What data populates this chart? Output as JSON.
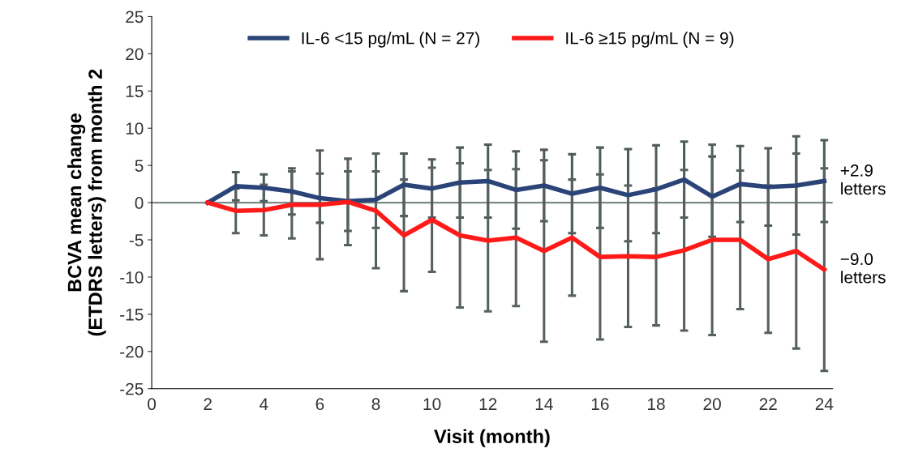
{
  "chart_data": {
    "type": "line",
    "xlabel": "Visit (month)",
    "ylabel": "BCVA mean change\n(ETDRS letters) from month 2",
    "x": [
      2,
      3,
      4,
      5,
      6,
      7,
      8,
      9,
      10,
      11,
      12,
      13,
      14,
      15,
      16,
      17,
      18,
      19,
      20,
      21,
      22,
      23,
      24
    ],
    "series": [
      {
        "name": "IL-6 <15 pg/mL (N = 27)",
        "color": "#2b4478",
        "values": [
          0,
          2.2,
          2.0,
          1.5,
          0.6,
          0.2,
          0.4,
          2.4,
          1.9,
          2.7,
          2.9,
          1.7,
          2.3,
          1.2,
          2.0,
          1.0,
          1.8,
          3.1,
          0.8,
          2.5,
          2.1,
          2.3,
          2.9
        ],
        "errors": [
          null,
          1.9,
          1.8,
          3.1,
          3.3,
          4.0,
          3.8,
          4.2,
          3.9,
          4.7,
          4.9,
          5.2,
          4.8,
          5.3,
          5.4,
          6.2,
          5.9,
          5.1,
          5.4,
          5.1,
          5.2,
          6.6,
          5.5
        ]
      },
      {
        "name": "IL-6 ≥15 pg/mL (N = 9)",
        "color": "#ff1a1a",
        "values": [
          0,
          -1.1,
          -1.0,
          -0.3,
          -0.3,
          0.1,
          -1.1,
          -4.4,
          -2.3,
          -4.4,
          -5.1,
          -4.7,
          -6.5,
          -4.7,
          -7.3,
          -7.2,
          -7.3,
          -6.4,
          -5.0,
          -5.0,
          -7.6,
          -6.5,
          -9.0
        ],
        "errors": [
          null,
          3.0,
          3.4,
          4.5,
          7.3,
          5.8,
          7.7,
          7.5,
          7.0,
          9.7,
          9.5,
          9.2,
          12.2,
          7.8,
          11.1,
          9.5,
          9.2,
          10.8,
          12.8,
          9.3,
          9.9,
          13.1,
          13.6
        ]
      }
    ],
    "xlim": [
      0,
      24.3
    ],
    "xticks": [
      0,
      2,
      4,
      6,
      8,
      10,
      12,
      14,
      16,
      18,
      20,
      22,
      24
    ],
    "ylim": [
      -25,
      25
    ],
    "yticks": [
      -25,
      -20,
      -15,
      -10,
      -5,
      0,
      5,
      10,
      15,
      20,
      25
    ],
    "ref_lines": [
      {
        "axis": "y",
        "value": 0,
        "color": "#7a8a86"
      }
    ],
    "annotations": [
      {
        "text": "+2.9\nletters",
        "x": 24,
        "y": 2.9
      },
      {
        "text": "−9.0\nletters",
        "x": 24,
        "y": -9.0
      }
    ],
    "legend": "top",
    "grid": false,
    "marker": "none",
    "line_style": "solid"
  }
}
